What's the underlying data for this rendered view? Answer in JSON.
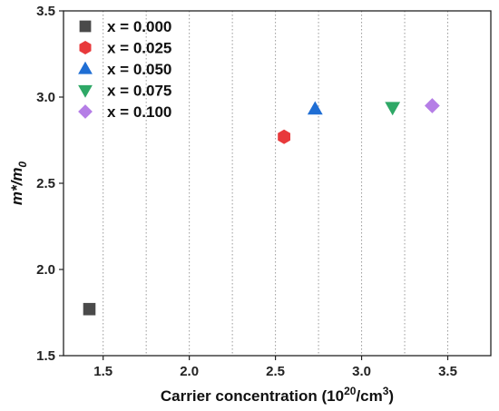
{
  "chart_data": {
    "type": "scatter",
    "xlabel": "Carrier concentration (10",
    "xlabel_sup": "20",
    "xlabel_suffix": "/cm",
    "xlabel_sup2": "3",
    "xlabel_close": ")",
    "ylabel_main": "m*/m",
    "ylabel_sub": "0",
    "xlim": [
      1.27,
      3.75
    ],
    "ylim": [
      1.5,
      3.5
    ],
    "x_ticks": [
      1.5,
      2.0,
      2.5,
      3.0,
      3.5
    ],
    "x_tick_labels": [
      "1.5",
      "2.0",
      "2.5",
      "3.0",
      "3.5"
    ],
    "y_ticks": [
      1.5,
      2.0,
      2.5,
      3.0,
      3.5
    ],
    "y_tick_labels": [
      "1.5",
      "2.0",
      "2.5",
      "3.0",
      "3.5"
    ],
    "x_gridlines": [
      1.5,
      1.75,
      2.0,
      2.25,
      2.5,
      2.75,
      3.0,
      3.25,
      3.5
    ],
    "grid": "vertical dotted",
    "legend_position": "top-left",
    "series": [
      {
        "name": "x = 0.000",
        "marker": "square",
        "color": "#4a4a4a",
        "x": [
          1.42
        ],
        "y": [
          1.77
        ]
      },
      {
        "name": "x = 0.025",
        "marker": "hexagon",
        "color": "#e8393b",
        "x": [
          2.55
        ],
        "y": [
          2.77
        ]
      },
      {
        "name": "x = 0.050",
        "marker": "triangle-up",
        "color": "#1f6ed4",
        "x": [
          2.73
        ],
        "y": [
          2.93
        ]
      },
      {
        "name": "x = 0.075",
        "marker": "triangle-down",
        "color": "#2ea866",
        "x": [
          3.18
        ],
        "y": [
          2.94
        ]
      },
      {
        "name": "x = 0.100",
        "marker": "diamond",
        "color": "#b57ee6",
        "x": [
          3.41
        ],
        "y": [
          2.95
        ]
      }
    ]
  }
}
